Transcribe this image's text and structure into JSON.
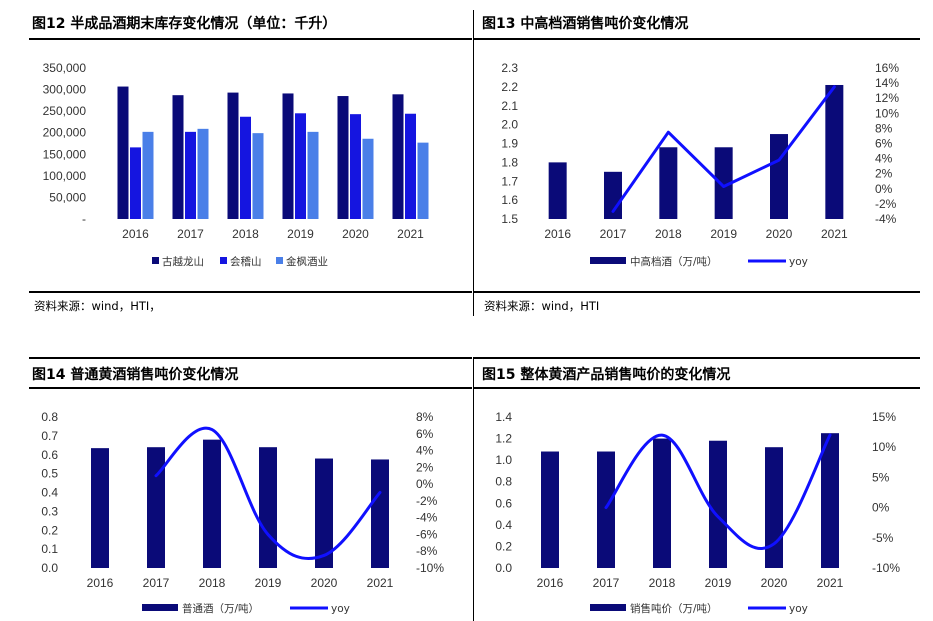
{
  "panels": {
    "p12": {
      "title": "图12 半成品酒期末库存变化情况（单位：千升）",
      "source": "资料来源：wind，HTI，"
    },
    "p13": {
      "title": "图13 中高档酒销售吨价变化情况",
      "source": "资料来源：wind，HTI"
    },
    "p14": {
      "title": "图14 普通黄酒销售吨价变化情况"
    },
    "p15": {
      "title": "图15 整体黄酒产品销售吨价的变化情况"
    }
  },
  "colors": {
    "navy": "#0a0a78",
    "blue": "#1515e0",
    "lightblue": "#4a7fe8",
    "line": "#1010ff"
  },
  "chart_data": [
    {
      "id": "p12",
      "type": "bar",
      "title": "图12 半成品酒期末库存变化情况（单位：千升）",
      "categories": [
        "2016",
        "2017",
        "2018",
        "2019",
        "2020",
        "2021"
      ],
      "y_ticks": [
        "350,000",
        "300,000",
        "250,000",
        "200,000",
        "150,000",
        "100,000",
        "50,000",
        "-"
      ],
      "ylim": [
        0,
        350000
      ],
      "series": [
        {
          "name": "古越龙山",
          "color": "#0a0a78",
          "values": [
            307000,
            287000,
            293000,
            291000,
            285000,
            289000
          ]
        },
        {
          "name": "会稽山",
          "color": "#1515e0",
          "values": [
            166000,
            202000,
            237000,
            245000,
            243000,
            244000
          ]
        },
        {
          "name": "金枫酒业",
          "color": "#4a7fe8",
          "values": [
            202000,
            209000,
            199000,
            202000,
            186000,
            177000
          ]
        }
      ],
      "legend": "bottom"
    },
    {
      "id": "p13",
      "type": "bar+line",
      "title": "图13 中高档酒销售吨价变化情况",
      "categories": [
        "2016",
        "2017",
        "2018",
        "2019",
        "2020",
        "2021"
      ],
      "y_ticks": [
        "2.3",
        "2.2",
        "2.1",
        "2.0",
        "1.9",
        "1.8",
        "1.7",
        "1.6",
        "1.5"
      ],
      "ylim": [
        1.5,
        2.3
      ],
      "y2_ticks": [
        "16%",
        "14%",
        "12%",
        "10%",
        "8%",
        "6%",
        "4%",
        "2%",
        "0%",
        "-2%",
        "-4%"
      ],
      "y2lim": [
        -4,
        16
      ],
      "bars": {
        "name": "中高档酒（万/吨）",
        "values": [
          1.8,
          1.75,
          1.88,
          1.88,
          1.95,
          2.21
        ]
      },
      "line": {
        "name": "yoy",
        "values": [
          null,
          -3.0,
          7.5,
          0.3,
          3.8,
          13.5
        ]
      },
      "legend": "bottom"
    },
    {
      "id": "p14",
      "type": "bar+line",
      "title": "图14 普通黄酒销售吨价变化情况",
      "categories": [
        "2016",
        "2017",
        "2018",
        "2019",
        "2020",
        "2021"
      ],
      "y_ticks": [
        "0.8",
        "0.7",
        "0.6",
        "0.5",
        "0.4",
        "0.3",
        "0.2",
        "0.1",
        "0.0"
      ],
      "ylim": [
        0,
        0.8
      ],
      "y2_ticks": [
        "8%",
        "6%",
        "4%",
        "2%",
        "0%",
        "-2%",
        "-4%",
        "-6%",
        "-8%",
        "-10%"
      ],
      "y2lim": [
        -10,
        8
      ],
      "bars": {
        "name": "普通酒（万/吨）",
        "values": [
          0.635,
          0.64,
          0.68,
          0.64,
          0.58,
          0.575
        ]
      },
      "line": {
        "name": "yoy",
        "values": [
          null,
          1.0,
          6.5,
          -6.0,
          -8.5,
          -1.0
        ]
      },
      "legend": "bottom"
    },
    {
      "id": "p15",
      "type": "bar+line",
      "title": "图15 整体黄酒产品销售吨价的变化情况",
      "categories": [
        "2016",
        "2017",
        "2018",
        "2019",
        "2020",
        "2021"
      ],
      "y_ticks": [
        "1.4",
        "1.2",
        "1.0",
        "0.8",
        "0.6",
        "0.4",
        "0.2",
        "0.0"
      ],
      "ylim": [
        0,
        1.4
      ],
      "y2_ticks": [
        "15%",
        "10%",
        "5%",
        "0%",
        "-5%",
        "-10%"
      ],
      "y2lim": [
        -10,
        15
      ],
      "bars": {
        "name": "销售吨价（万/吨）",
        "values": [
          1.08,
          1.08,
          1.2,
          1.18,
          1.12,
          1.25
        ]
      },
      "line": {
        "name": "yoy",
        "values": [
          null,
          0.0,
          12.0,
          -1.5,
          -6.0,
          12.0
        ]
      },
      "legend": "bottom"
    }
  ]
}
